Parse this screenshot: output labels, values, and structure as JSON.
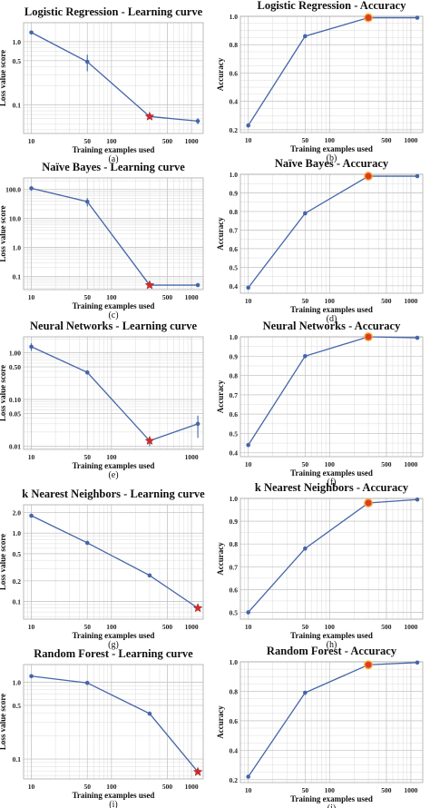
{
  "figure": {
    "colors": {
      "line": "#4466a8",
      "marker": "#4466a8",
      "best_star": "#d42a2a",
      "best_circle": "#e0392b",
      "grid": "#dcdcdc",
      "frame": "#aaaaaa"
    },
    "panels": [
      {
        "caption": "(a)",
        "chart_data": {
          "type": "line",
          "title": "Logistic Regression - Learning curve",
          "xlabel": "Training examples used",
          "ylabel": "Loss value score",
          "xscale": "log",
          "yscale": "log",
          "grid": true,
          "xticks": [
            "10",
            "50",
            "100",
            "500",
            "1000"
          ],
          "xtick_values": [
            10,
            50,
            100,
            500,
            1000
          ],
          "yticks": [
            "1.0",
            "0.5",
            "0.1"
          ],
          "ytick_values": [
            1.0,
            0.5,
            0.1
          ],
          "xlim": [
            8,
            1400
          ],
          "ylim": [
            0.035,
            2.0
          ],
          "series": [
            {
              "x": [
                10,
                50,
                300,
                1200
              ],
              "y": [
                1.4,
                0.48,
                0.065,
                0.055
              ],
              "err": [
                0,
                0.14,
                0.006,
                0.006
              ]
            }
          ],
          "best_index": 2,
          "best_marker": "star"
        }
      },
      {
        "caption": "(b)",
        "chart_data": {
          "type": "line",
          "title": "Logistic Regression - Accuracy",
          "xlabel": "Training examples used",
          "ylabel": "Accuracy",
          "xscale": "log",
          "yscale": "linear",
          "grid": true,
          "xticks": [
            "10",
            "50",
            "100",
            "500",
            "1000"
          ],
          "xtick_values": [
            10,
            50,
            100,
            500,
            1000
          ],
          "yticks": [
            "0.2",
            "0.4",
            "0.6",
            "0.8",
            "1.0"
          ],
          "ytick_values": [
            0.2,
            0.4,
            0.6,
            0.8,
            1.0
          ],
          "xlim": [
            8,
            1400
          ],
          "ylim": [
            0.18,
            1.0
          ],
          "series": [
            {
              "x": [
                10,
                50,
                300,
                1200
              ],
              "y": [
                0.23,
                0.86,
                0.99,
                0.99
              ]
            }
          ],
          "best_index": 2,
          "best_marker": "circle"
        }
      },
      {
        "caption": "(c)",
        "chart_data": {
          "type": "line",
          "title": "Naïve Bayes - Learning curve",
          "xlabel": "Training examples used",
          "ylabel": "Loss value score",
          "xscale": "log",
          "yscale": "log",
          "grid": true,
          "xticks": [
            "10",
            "50",
            "100",
            "500",
            "1000"
          ],
          "xtick_values": [
            10,
            50,
            100,
            500,
            1000
          ],
          "yticks": [
            "100.0",
            "10.0",
            "1.0",
            "0.1"
          ],
          "ytick_values": [
            100,
            10,
            1,
            0.1
          ],
          "xlim": [
            8,
            1400
          ],
          "ylim": [
            0.035,
            250
          ],
          "series": [
            {
              "x": [
                10,
                50,
                300,
                1200
              ],
              "y": [
                110,
                38,
                0.05,
                0.05
              ],
              "err": [
                20,
                12,
                0,
                0
              ]
            }
          ],
          "best_index": 2,
          "best_marker": "star"
        }
      },
      {
        "caption": "(d)",
        "chart_data": {
          "type": "line",
          "title": "Naïve Bayes - Accuracy",
          "xlabel": "Training examples used",
          "ylabel": "Accuracy",
          "xscale": "log",
          "yscale": "linear",
          "grid": true,
          "xticks": [
            "10",
            "50",
            "100",
            "500",
            "1000"
          ],
          "xtick_values": [
            10,
            50,
            100,
            500,
            1000
          ],
          "yticks": [
            "0.4",
            "0.5",
            "0.6",
            "0.7",
            "0.8",
            "0.9",
            "1.0"
          ],
          "ytick_values": [
            0.4,
            0.5,
            0.6,
            0.7,
            0.8,
            0.9,
            1.0
          ],
          "xlim": [
            8,
            1400
          ],
          "ylim": [
            0.36,
            1.0
          ],
          "series": [
            {
              "x": [
                10,
                50,
                300,
                1200
              ],
              "y": [
                0.39,
                0.79,
                0.99,
                0.99
              ]
            }
          ],
          "best_index": 2,
          "best_marker": "circle"
        }
      },
      {
        "caption": "(e)",
        "chart_data": {
          "type": "line",
          "title": "Neural Networks - Learning curve",
          "xlabel": "Training examples used",
          "ylabel": "Loss value score",
          "xscale": "log",
          "yscale": "log",
          "grid": true,
          "xticks": [
            "10",
            "50",
            "100",
            "1000"
          ],
          "xtick_values": [
            10,
            50,
            100,
            1000
          ],
          "yticks": [
            "1.00",
            "0.50",
            "0.10",
            "0.05",
            "0.01"
          ],
          "ytick_values": [
            1.0,
            0.5,
            0.1,
            0.05,
            0.01
          ],
          "xlim": [
            8,
            1400
          ],
          "ylim": [
            0.0085,
            2.2
          ],
          "series": [
            {
              "x": [
                10,
                50,
                300,
                1200
              ],
              "y": [
                1.35,
                0.38,
                0.013,
                0.03
              ],
              "err": [
                0.25,
                0.04,
                0.003,
                0.015
              ]
            }
          ],
          "best_index": 2,
          "best_marker": "star"
        }
      },
      {
        "caption": "(f)",
        "chart_data": {
          "type": "line",
          "title": "Neural Networks - Accuracy",
          "xlabel": "Training examples used",
          "ylabel": "Accuracy",
          "xscale": "log",
          "yscale": "linear",
          "grid": true,
          "xticks": [
            "10",
            "50",
            "100",
            "500",
            "1000"
          ],
          "xtick_values": [
            10,
            50,
            100,
            500,
            1000
          ],
          "yticks": [
            "0.4",
            "0.5",
            "0.6",
            "0.7",
            "0.8",
            "0.9",
            "1.0"
          ],
          "ytick_values": [
            0.4,
            0.5,
            0.6,
            0.7,
            0.8,
            0.9,
            1.0
          ],
          "xlim": [
            8,
            1400
          ],
          "ylim": [
            0.38,
            1.0
          ],
          "series": [
            {
              "x": [
                10,
                50,
                300,
                1200
              ],
              "y": [
                0.44,
                0.9,
                1.0,
                0.995
              ]
            }
          ],
          "best_index": 2,
          "best_marker": "circle"
        }
      },
      {
        "caption": "(g)",
        "chart_data": {
          "type": "line",
          "title": "k Nearest Neighbors - Learning curve",
          "xlabel": "Training examples used",
          "ylabel": "Loss value score",
          "xscale": "log",
          "yscale": "log",
          "grid": true,
          "xticks": [
            "10",
            "50",
            "100",
            "500",
            "1000"
          ],
          "xtick_values": [
            10,
            50,
            100,
            500,
            1000
          ],
          "yticks": [
            "2.0",
            "1.0",
            "0.5",
            "0.2",
            "0.1"
          ],
          "ytick_values": [
            2.0,
            1.0,
            0.5,
            0.2,
            0.1
          ],
          "xlim": [
            8,
            1400
          ],
          "ylim": [
            0.055,
            2.6
          ],
          "series": [
            {
              "x": [
                10,
                50,
                300,
                1200
              ],
              "y": [
                1.8,
                0.72,
                0.24,
                0.08
              ]
            }
          ],
          "best_index": 3,
          "best_marker": "star"
        }
      },
      {
        "caption": "(h)",
        "chart_data": {
          "type": "line",
          "title": "k Nearest Neighbors - Accuracy",
          "xlabel": "Training examples used",
          "ylabel": "Accuracy",
          "xscale": "log",
          "yscale": "linear",
          "grid": true,
          "xticks": [
            "10",
            "50",
            "100",
            "500",
            "1000"
          ],
          "xtick_values": [
            10,
            50,
            100,
            500,
            1000
          ],
          "yticks": [
            "0.5",
            "0.6",
            "0.7",
            "0.8",
            "0.9",
            "1.0"
          ],
          "ytick_values": [
            0.5,
            0.6,
            0.7,
            0.8,
            0.9,
            1.0
          ],
          "xlim": [
            8,
            1400
          ],
          "ylim": [
            0.47,
            1.0
          ],
          "series": [
            {
              "x": [
                10,
                50,
                300,
                1200
              ],
              "y": [
                0.5,
                0.78,
                0.98,
                0.995
              ]
            }
          ],
          "best_index": 2,
          "best_marker": "circle"
        }
      },
      {
        "caption": "(i)",
        "chart_data": {
          "type": "line",
          "title": "Random Forest - Learning curve",
          "xlabel": "Training examples used",
          "ylabel": "Loss value score",
          "xscale": "log",
          "yscale": "log",
          "grid": true,
          "xticks": [
            "10",
            "50",
            "100",
            "500",
            "1000"
          ],
          "xtick_values": [
            10,
            50,
            100,
            500,
            1000
          ],
          "yticks": [
            "1.0",
            "0.5",
            "0.1"
          ],
          "ytick_values": [
            1.0,
            0.5,
            0.1
          ],
          "xlim": [
            8,
            1400
          ],
          "ylim": [
            0.055,
            1.7
          ],
          "series": [
            {
              "x": [
                10,
                50,
                300,
                1200
              ],
              "y": [
                1.2,
                0.98,
                0.39,
                0.068
              ]
            }
          ],
          "best_index": 3,
          "best_marker": "star"
        }
      },
      {
        "caption": "(j)",
        "chart_data": {
          "type": "line",
          "title": "Random Forest - Accuracy",
          "xlabel": "Training examples used",
          "ylabel": "Accuracy",
          "xscale": "log",
          "yscale": "linear",
          "grid": true,
          "xticks": [
            "10",
            "50",
            "100",
            "500",
            "1000"
          ],
          "xtick_values": [
            10,
            50,
            100,
            500,
            1000
          ],
          "yticks": [
            "0.2",
            "0.4",
            "0.6",
            "0.8",
            "1.0"
          ],
          "ytick_values": [
            0.2,
            0.4,
            0.6,
            0.8,
            1.0
          ],
          "xlim": [
            8,
            1400
          ],
          "ylim": [
            0.18,
            1.0
          ],
          "series": [
            {
              "x": [
                10,
                50,
                300,
                1200
              ],
              "y": [
                0.22,
                0.79,
                0.98,
                0.995
              ]
            }
          ],
          "best_index": 2,
          "best_marker": "circle"
        }
      }
    ]
  }
}
